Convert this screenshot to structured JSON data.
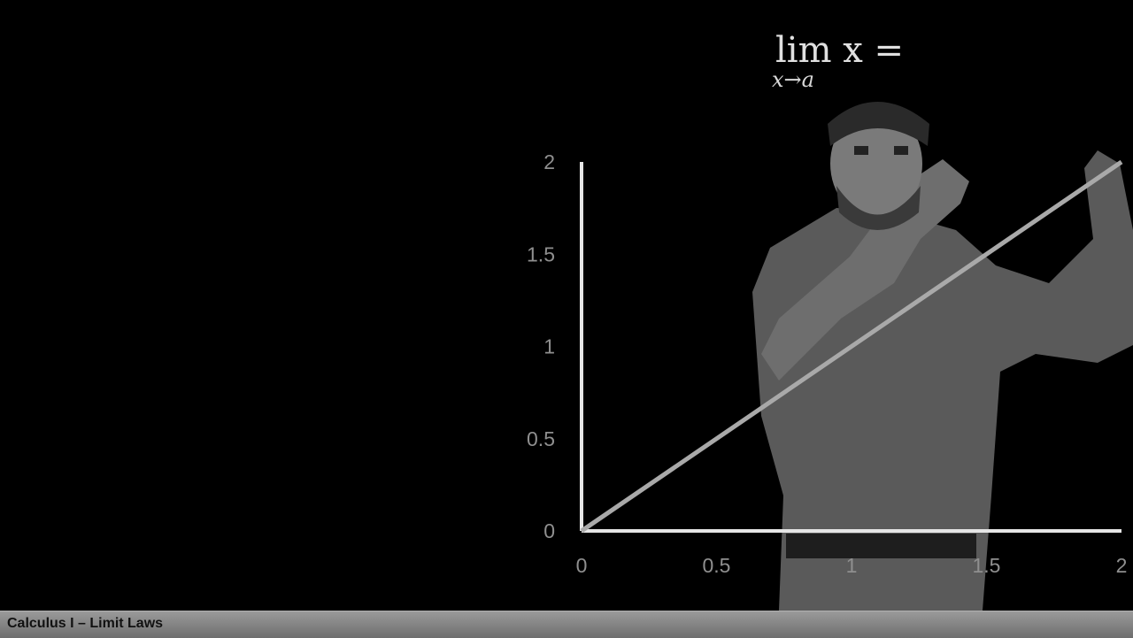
{
  "video": {
    "footer_title": "Calculus I – Limit Laws",
    "person": "lecturer-figure"
  },
  "formula": {
    "main": "lim x =",
    "subscript": "x→a"
  },
  "chart_data": {
    "type": "line",
    "x": [
      0,
      2
    ],
    "y": [
      0,
      2
    ],
    "xlim": [
      0,
      2
    ],
    "ylim": [
      0,
      2
    ],
    "xticks": [
      "0",
      "0.5",
      "1",
      "1.5",
      "2"
    ],
    "yticks": [
      "0",
      "0.5",
      "1",
      "1.5",
      "2"
    ],
    "xtick_values": [
      0,
      0.5,
      1,
      1.5,
      2
    ],
    "ytick_values": [
      0,
      0.5,
      1,
      1.5,
      2
    ],
    "grid": false,
    "colors": {
      "axis": "#e6e6e6",
      "line": "#a9a9a9",
      "ticks": "#8f8f8f"
    }
  }
}
